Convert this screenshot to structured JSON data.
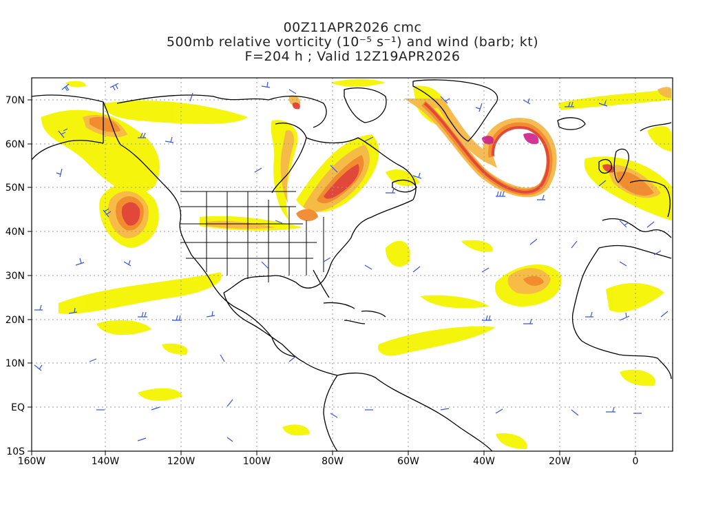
{
  "title": {
    "line1": "00Z11APR2026 cmc",
    "line2": "500mb relative vorticity (10⁻⁵ s⁻¹) and wind (barb; kt)",
    "line3": "F=204 h ; Valid 12Z19APR2026"
  },
  "axes": {
    "lon_labels": [
      "160W",
      "140W",
      "120W",
      "100W",
      "80W",
      "60W",
      "40W",
      "20W",
      "0"
    ],
    "lat_labels": [
      "70N",
      "60N",
      "50N",
      "40N",
      "30N",
      "20N",
      "10N",
      "EQ",
      "10S"
    ]
  },
  "colors": {
    "shade_1": "#f4f400",
    "shade_2": "#f0e080",
    "shade_3": "#f5b84a",
    "shade_4": "#f08a2e",
    "shade_5": "#e0453a",
    "shade_6": "#cc1f8a",
    "wind_barb": "#3355dd",
    "coastline": "#000000",
    "grid": "#999999"
  }
}
